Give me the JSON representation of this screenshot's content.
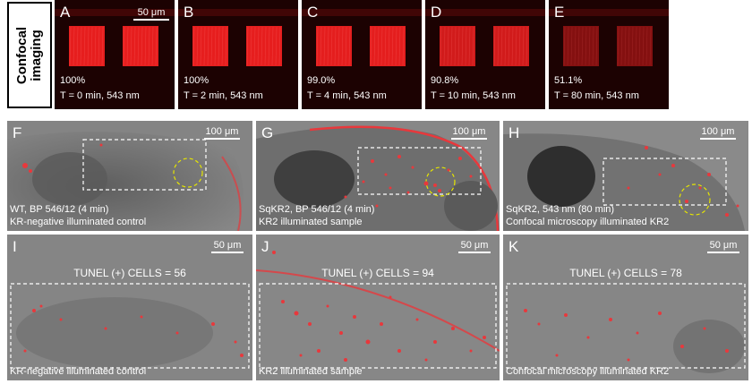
{
  "side_label": {
    "line1": "Confocal",
    "line2": "imaging"
  },
  "top_panels": [
    {
      "letter": "A",
      "percent": "100%",
      "time": "T = 0 min, 543 nm",
      "scale": "50 μm",
      "intensity": 1.0
    },
    {
      "letter": "B",
      "percent": "100%",
      "time": "T = 2 min, 543 nm",
      "scale": "",
      "intensity": 1.0
    },
    {
      "letter": "C",
      "percent": "99.0%",
      "time": "T = 4 min, 543 nm",
      "scale": "",
      "intensity": 0.99
    },
    {
      "letter": "D",
      "percent": "90.8%",
      "time": "T = 10 min, 543 nm",
      "scale": "",
      "intensity": 0.908
    },
    {
      "letter": "E",
      "percent": "51.1%",
      "time": "T = 80 min, 543 nm",
      "scale": "",
      "intensity": 0.511
    }
  ],
  "mid_panels": [
    {
      "letter": "F",
      "line1": "WT, BP 546/12 (4 min)",
      "line2": "KR-negative illuminated control",
      "scale": "100 μm"
    },
    {
      "letter": "G",
      "line1": "SqKR2, BP 546/12 (4 min)",
      "line2": "KR2 illuminated sample",
      "scale": "100 μm"
    },
    {
      "letter": "H",
      "line1": "SqKR2, 543 nm (80 min)",
      "line2": "Confocal microscopy illuminated KR2",
      "scale": "100 μm"
    }
  ],
  "bottom_panels": [
    {
      "letter": "I",
      "tunel": "TUNEL (+) CELLS = 56",
      "caption": "KR-negative illuminated control",
      "scale": "50 μm"
    },
    {
      "letter": "J",
      "tunel": "TUNEL (+) CELLS = 94",
      "caption": "KR2 illuminated sample",
      "scale": "50 μm"
    },
    {
      "letter": "K",
      "tunel": "TUNEL (+) CELLS = 78",
      "caption": "Confocal microscopy illuminated KR2",
      "scale": "50 μm"
    }
  ],
  "colors": {
    "red_signal": "#e8383c",
    "dark_red": "#2a0404",
    "gray_bg": "#7a7a7a",
    "dashed_box": "#ffffff",
    "yellow_circle": "#e6e600"
  }
}
